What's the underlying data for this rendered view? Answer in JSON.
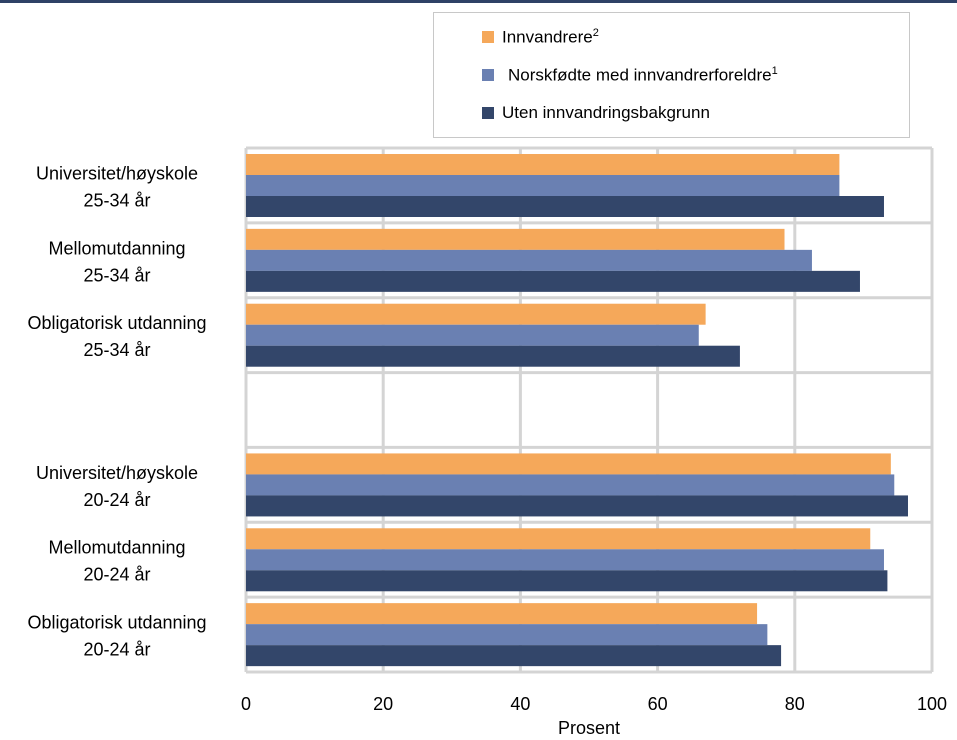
{
  "chart_data": {
    "type": "bar",
    "orientation": "horizontal",
    "groups": [
      {
        "line1": "Universitet/høyskole",
        "line2": "25-34 år"
      },
      {
        "line1": "Mellomutdanning",
        "line2": "25-34 år"
      },
      {
        "line1": "Obligatorisk utdanning",
        "line2": "25-34 år"
      },
      null,
      {
        "line1": "Universitet/høyskole",
        "line2": "20-24 år"
      },
      {
        "line1": "Mellomutdanning",
        "line2": "20-24 år"
      },
      {
        "line1": "Obligatorisk utdanning",
        "line2": "20-24 år"
      }
    ],
    "series": [
      {
        "name": "Innvandrere",
        "sup": "2",
        "color": "#f5a85a",
        "values": [
          86.5,
          78.5,
          67,
          null,
          94,
          91,
          74.5
        ]
      },
      {
        "name": "Norskfødte med innvandrerforeldre",
        "sup": "1",
        "color": "#6a80b2",
        "values": [
          86.5,
          82.5,
          66,
          null,
          94.5,
          93,
          76
        ]
      },
      {
        "name": "Uten innvandringsbakgrunn",
        "sup": "",
        "color": "#33466a",
        "values": [
          93,
          89.5,
          72,
          null,
          96.5,
          93.5,
          78
        ]
      }
    ],
    "xlabel": "Prosent",
    "xlim": [
      0,
      100
    ],
    "xticks": [
      0,
      20,
      40,
      60,
      80,
      100
    ],
    "grid": true,
    "legend_position": "top-right"
  }
}
